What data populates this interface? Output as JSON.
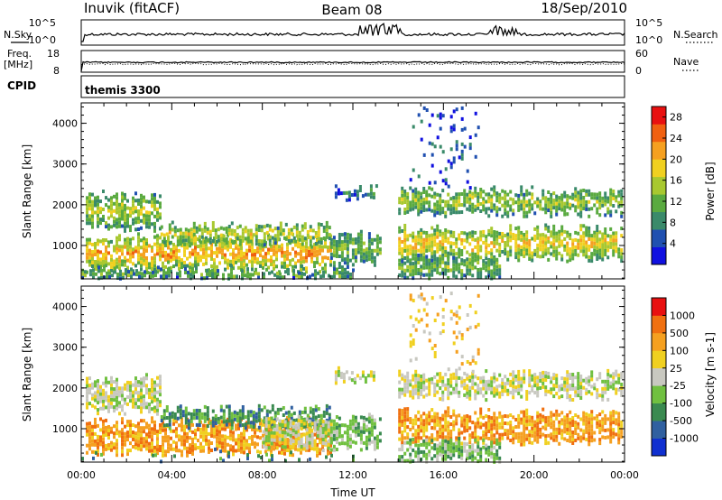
{
  "header": {
    "station": "Inuvik (fitACF)",
    "beam": "Beam 08",
    "date": "18/Sep/2010"
  },
  "top_panels": {
    "nsky_label": "N.Sky",
    "nsearch_label": "N.Search",
    "noise_ticks": [
      "10^5",
      "10^0"
    ],
    "freq_label": "Freq.",
    "freq_unit": "[MHz]",
    "freq_ticks": [
      "18",
      "8"
    ],
    "nave_label": "Nave",
    "nave_ticks": [
      "60",
      "0"
    ],
    "cpid_label": "CPID",
    "cpid_value": "themis 3300"
  },
  "chart_data": [
    {
      "type": "heatmap",
      "name": "power",
      "ylabel": "Slant Range [km]",
      "xlabel": "",
      "x_ticks": [
        "00:00",
        "04:00",
        "08:00",
        "12:00",
        "16:00",
        "20:00",
        "00:00"
      ],
      "xlim_hours": [
        0,
        24
      ],
      "y_ticks": [
        1000,
        2000,
        3000,
        4000
      ],
      "ylim": [
        180,
        4500
      ],
      "colorbar": {
        "label": "Power [dB]",
        "ticks": [
          4,
          8,
          12,
          16,
          20,
          24,
          28
        ],
        "range": [
          0,
          30
        ],
        "colors": [
          "#1010e0",
          "#2050b0",
          "#3a8a6a",
          "#5aaa40",
          "#a8c830",
          "#f0d020",
          "#f5a020",
          "#f06010",
          "#e81010"
        ]
      },
      "bands": [
        {
          "h0": 0.2,
          "h1": 11.0,
          "r0": 480,
          "r1": 1250,
          "value": 20
        },
        {
          "h0": 0.2,
          "h1": 3.5,
          "r0": 1500,
          "r1": 2300,
          "value": 14
        },
        {
          "h0": 3.5,
          "h1": 11.0,
          "r0": 1150,
          "r1": 1550,
          "value": 16
        },
        {
          "h0": 11.0,
          "h1": 13.2,
          "r0": 600,
          "r1": 1300,
          "value": 12
        },
        {
          "h0": 11.2,
          "h1": 13.0,
          "r0": 2250,
          "r1": 2450,
          "value": 8
        },
        {
          "h0": 14.0,
          "h1": 24.0,
          "r0": 1850,
          "r1": 2400,
          "value": 14
        },
        {
          "h0": 14.0,
          "h1": 24.0,
          "r0": 750,
          "r1": 1450,
          "value": 18
        },
        {
          "h0": 14.0,
          "h1": 18.5,
          "r0": 250,
          "r1": 750,
          "value": 12
        },
        {
          "h0": 0.0,
          "h1": 12.0,
          "r0": 190,
          "r1": 450,
          "value": 10
        },
        {
          "h0": 14.5,
          "h1": 17.5,
          "r0": 2500,
          "r1": 4400,
          "value": 4
        }
      ]
    },
    {
      "type": "heatmap",
      "name": "velocity",
      "ylabel": "Slant Range [km]",
      "xlabel": "Time UT",
      "x_ticks": [
        "00:00",
        "04:00",
        "08:00",
        "12:00",
        "16:00",
        "20:00",
        "00:00"
      ],
      "xlim_hours": [
        0,
        24
      ],
      "y_ticks": [
        1000,
        2000,
        3000,
        4000
      ],
      "ylim": [
        180,
        4500
      ],
      "colorbar": {
        "label": "Velocity [m s-1]",
        "ticks": [
          "1000",
          "500",
          "100",
          "25",
          "-25",
          "-100",
          "-500",
          "-1000"
        ],
        "colors": [
          "#1030d0",
          "#3060a0",
          "#3a8a50",
          "#70c040",
          "#c8c8c0",
          "#f0d020",
          "#f5a020",
          "#f07010",
          "#e81010"
        ]
      },
      "bands": [
        {
          "h0": 0.2,
          "h1": 11.0,
          "r0": 480,
          "r1": 1250,
          "cat": 6
        },
        {
          "h0": 3.5,
          "h1": 11.0,
          "r0": 1150,
          "r1": 1550,
          "cat": 2
        },
        {
          "h0": 0.2,
          "h1": 3.5,
          "r0": 1500,
          "r1": 2300,
          "cat": 4
        },
        {
          "h0": 8.0,
          "h1": 11.0,
          "r0": 600,
          "r1": 1300,
          "cat": 4
        },
        {
          "h0": 11.0,
          "h1": 13.2,
          "r0": 600,
          "r1": 1300,
          "cat": 3
        },
        {
          "h0": 11.2,
          "h1": 13.0,
          "r0": 2250,
          "r1": 2450,
          "cat": 4
        },
        {
          "h0": 14.0,
          "h1": 24.0,
          "r0": 1850,
          "r1": 2400,
          "cat": 4
        },
        {
          "h0": 14.0,
          "h1": 24.0,
          "r0": 750,
          "r1": 1450,
          "cat": 6
        },
        {
          "h0": 14.0,
          "h1": 18.5,
          "r0": 250,
          "r1": 750,
          "cat": 3
        },
        {
          "h0": 0.0,
          "h1": 12.0,
          "r0": 190,
          "r1": 450,
          "cat": 2
        },
        {
          "h0": 14.5,
          "h1": 17.5,
          "r0": 2500,
          "r1": 4400,
          "cat": 5
        }
      ]
    }
  ]
}
